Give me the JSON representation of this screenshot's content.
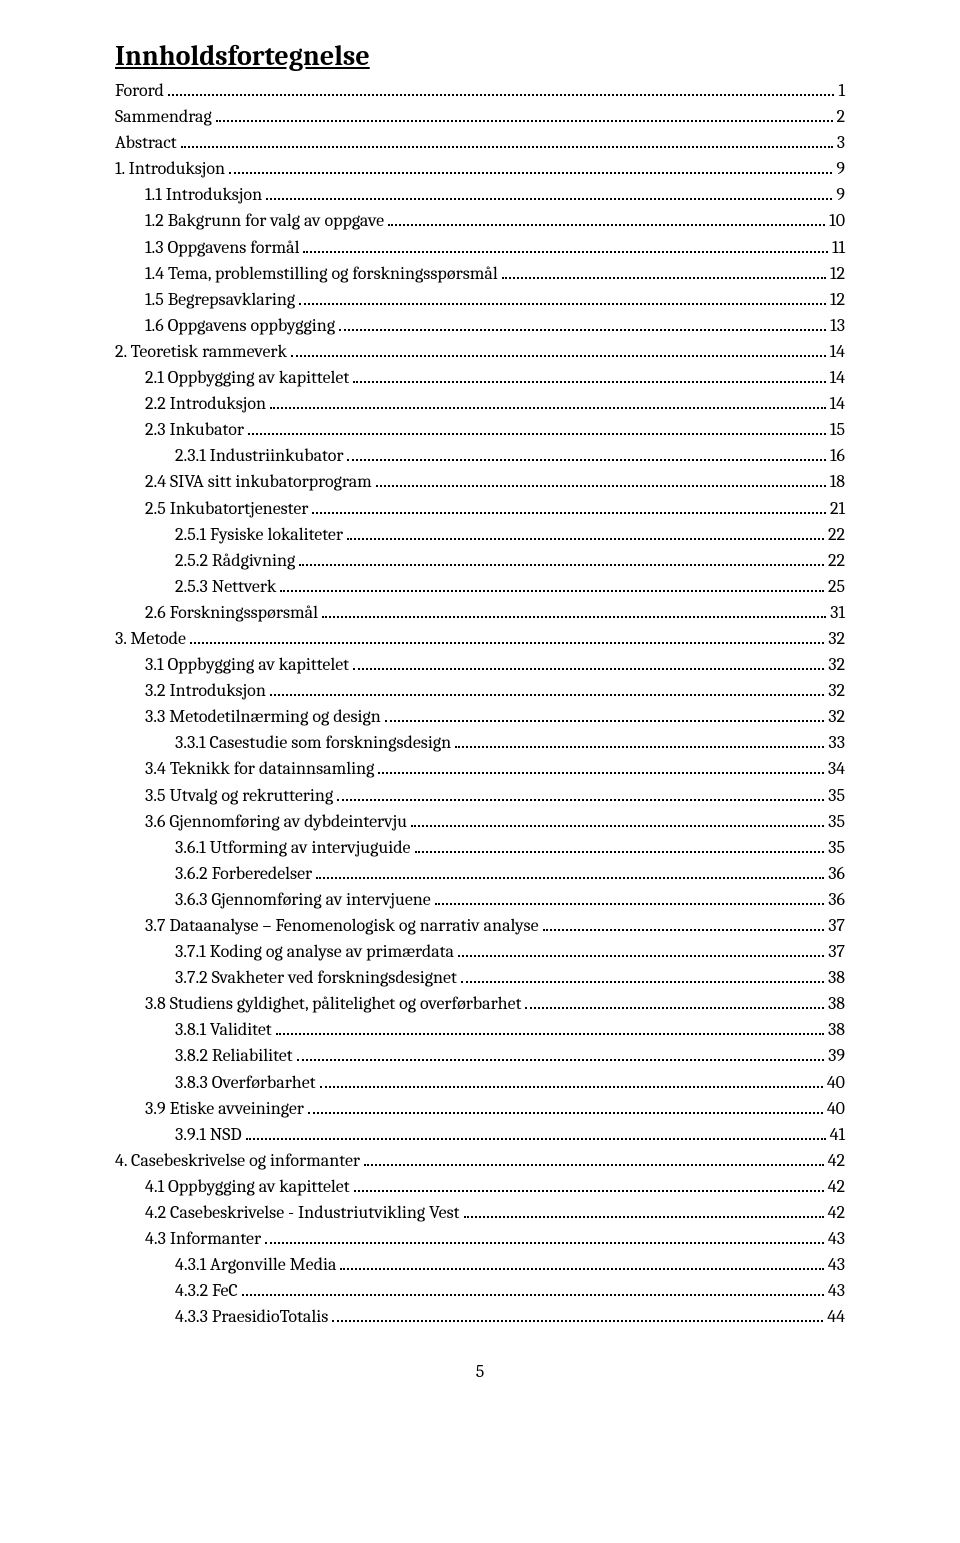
{
  "title": "Innholdsfortegnelse",
  "page_number": "5",
  "toc": [
    {
      "level": 0,
      "label": "Forord",
      "page": "1"
    },
    {
      "level": 0,
      "label": "Sammendrag",
      "page": "2"
    },
    {
      "level": 0,
      "label": "Abstract",
      "page": "3"
    },
    {
      "level": 0,
      "label": "1. Introduksjon",
      "page": "9"
    },
    {
      "level": 1,
      "label": "1.1    Introduksjon",
      "page": "9"
    },
    {
      "level": 1,
      "label": "1.2    Bakgrunn for valg av oppgave",
      "page": "10"
    },
    {
      "level": 1,
      "label": "1.3    Oppgavens formål",
      "page": "11"
    },
    {
      "level": 1,
      "label": "1.4    Tema, problemstilling og forskningsspørsmål",
      "page": "12"
    },
    {
      "level": 1,
      "label": "1.5    Begrepsavklaring",
      "page": "12"
    },
    {
      "level": 1,
      "label": "1.6    Oppgavens oppbygging",
      "page": "13"
    },
    {
      "level": 0,
      "label": "2. Teoretisk rammeverk",
      "page": "14"
    },
    {
      "level": 1,
      "label": "2.1    Oppbygging av kapittelet",
      "page": "14"
    },
    {
      "level": 1,
      "label": "2.2    Introduksjon",
      "page": "14"
    },
    {
      "level": 1,
      "label": "2.3    Inkubator",
      "page": "15"
    },
    {
      "level": 2,
      "label": "2.3.1     Industriinkubator",
      "page": "16"
    },
    {
      "level": 1,
      "label": "2.4    SIVA sitt inkubatorprogram",
      "page": "18"
    },
    {
      "level": 1,
      "label": "2.5    Inkubatortjenester",
      "page": "21"
    },
    {
      "level": 2,
      "label": "2.5.1     Fysiske lokaliteter",
      "page": "22"
    },
    {
      "level": 2,
      "label": "2.5.2     Rådgivning",
      "page": "22"
    },
    {
      "level": 2,
      "label": "2.5.3     Nettverk",
      "page": "25"
    },
    {
      "level": 1,
      "label": "2.6    Forskningsspørsmål",
      "page": "31"
    },
    {
      "level": 0,
      "label": "3. Metode",
      "page": "32"
    },
    {
      "level": 1,
      "label": "3.1    Oppbygging av kapittelet",
      "page": "32"
    },
    {
      "level": 1,
      "label": "3.2    Introduksjon",
      "page": "32"
    },
    {
      "level": 1,
      "label": "3.3    Metodetilnærming og design",
      "page": "32"
    },
    {
      "level": 2,
      "label": "3.3.1     Casestudie som forskningsdesign",
      "page": "33"
    },
    {
      "level": 1,
      "label": "3.4    Teknikk for datainnsamling",
      "page": "34"
    },
    {
      "level": 1,
      "label": "3.5    Utvalg og rekruttering",
      "page": "35"
    },
    {
      "level": 1,
      "label": "3.6    Gjennomføring av dybdeintervju",
      "page": "35"
    },
    {
      "level": 2,
      "label": "3.6.1     Utforming av intervjuguide",
      "page": "35"
    },
    {
      "level": 2,
      "label": "3.6.2     Forberedelser",
      "page": "36"
    },
    {
      "level": 2,
      "label": "3.6.3     Gjennomføring av intervjuene",
      "page": "36"
    },
    {
      "level": 1,
      "label": "3.7    Dataanalyse – Fenomenologisk og narrativ analyse",
      "page": "37"
    },
    {
      "level": 2,
      "label": "3.7.1     Koding og analyse av primærdata",
      "page": "37"
    },
    {
      "level": 2,
      "label": "3.7.2     Svakheter ved forskningsdesignet",
      "page": "38"
    },
    {
      "level": 1,
      "label": "3.8    Studiens gyldighet, pålitelighet og overførbarhet",
      "page": "38"
    },
    {
      "level": 2,
      "label": "3.8.1     Validitet",
      "page": "38"
    },
    {
      "level": 2,
      "label": "3.8.2     Reliabilitet",
      "page": "39"
    },
    {
      "level": 2,
      "label": "3.8.3     Overførbarhet",
      "page": "40"
    },
    {
      "level": 1,
      "label": "3.9    Etiske avveininger",
      "page": "40"
    },
    {
      "level": 2,
      "label": "3.9.1 NSD",
      "page": "41"
    },
    {
      "level": 0,
      "label": "4. Casebeskrivelse og informanter",
      "page": "42"
    },
    {
      "level": 1,
      "label": "4.1    Oppbygging av kapittelet",
      "page": "42"
    },
    {
      "level": 1,
      "label": "4.2    Casebeskrivelse - Industriutvikling Vest",
      "page": "42"
    },
    {
      "level": 1,
      "label": "4.3    Informanter",
      "page": "43"
    },
    {
      "level": 2,
      "label": "4.3.1     Argonville Media",
      "page": "43"
    },
    {
      "level": 2,
      "label": "4.3.2     FeC",
      "page": "43"
    },
    {
      "level": 2,
      "label": "4.3.3     PraesidioTotalis",
      "page": "44"
    }
  ]
}
